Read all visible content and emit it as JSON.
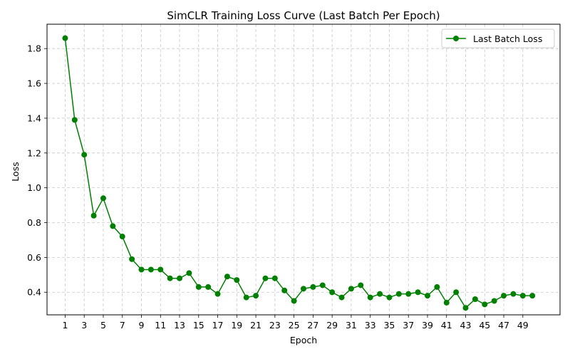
{
  "chart_data": {
    "type": "line",
    "title": "SimCLR Training Loss Curve (Last Batch Per Epoch)",
    "xlabel": "Epoch",
    "ylabel": "Loss",
    "xlim": [
      -0.9,
      52.9
    ],
    "ylim": [
      0.27,
      1.94
    ],
    "x_ticks": [
      1,
      3,
      5,
      7,
      9,
      11,
      13,
      15,
      17,
      19,
      21,
      23,
      25,
      27,
      29,
      31,
      33,
      35,
      37,
      39,
      41,
      43,
      45,
      47,
      49
    ],
    "y_ticks": [
      0.4,
      0.6,
      0.8,
      1.0,
      1.2,
      1.4,
      1.6,
      1.8
    ],
    "y_tick_labels": [
      "0.4",
      "0.6",
      "0.8",
      "1.0",
      "1.2",
      "1.4",
      "1.6",
      "1.8"
    ],
    "grid": true,
    "grid_style": "dashed",
    "legend_position": "upper right",
    "x": [
      1,
      2,
      3,
      4,
      5,
      6,
      7,
      8,
      9,
      10,
      11,
      12,
      13,
      14,
      15,
      16,
      17,
      18,
      19,
      20,
      21,
      22,
      23,
      24,
      25,
      26,
      27,
      28,
      29,
      30,
      31,
      32,
      33,
      34,
      35,
      36,
      37,
      38,
      39,
      40,
      41,
      42,
      43,
      44,
      45,
      46,
      47,
      48,
      49,
      50
    ],
    "series": [
      {
        "name": "Last Batch Loss",
        "color": "#008000",
        "marker": "circle",
        "values": [
          1.86,
          1.39,
          1.19,
          0.84,
          0.94,
          0.78,
          0.72,
          0.59,
          0.53,
          0.53,
          0.53,
          0.48,
          0.48,
          0.51,
          0.43,
          0.43,
          0.39,
          0.49,
          0.47,
          0.37,
          0.38,
          0.48,
          0.48,
          0.41,
          0.35,
          0.42,
          0.43,
          0.44,
          0.4,
          0.37,
          0.42,
          0.44,
          0.37,
          0.39,
          0.37,
          0.39,
          0.39,
          0.4,
          0.38,
          0.43,
          0.34,
          0.4,
          0.31,
          0.36,
          0.33,
          0.35,
          0.38,
          0.39,
          0.38,
          0.38
        ]
      }
    ]
  }
}
